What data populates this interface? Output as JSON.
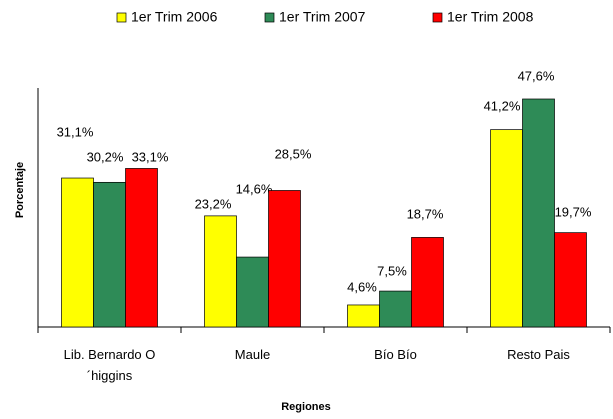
{
  "chart_data": {
    "type": "bar",
    "x_label": "Regiones",
    "y_label": "Porcentaje",
    "categories": [
      "Lib. Bernardo O´higgins",
      "Maule",
      "Bío Bío",
      "Resto Pais"
    ],
    "legend": "top",
    "series": [
      {
        "name": "1er Trim 2006",
        "color": "#ffff00",
        "values": [
          31.1,
          23.2,
          4.6,
          41.2
        ],
        "value_labels": [
          "31,1%",
          "23,2%",
          "4,6%",
          "41,2%"
        ]
      },
      {
        "name": "1er Trim 2007",
        "color": "#2e8b57",
        "values": [
          30.2,
          14.6,
          7.5,
          47.6
        ],
        "value_labels": [
          "30,2%",
          "14,6%",
          "7,5%",
          "47,6%"
        ]
      },
      {
        "name": "1er Trim 2008",
        "color": "#ff0000",
        "values": [
          33.1,
          28.5,
          18.7,
          19.7
        ],
        "value_labels": [
          "33,1%",
          "28,5%",
          "18,7%",
          "19,7%"
        ]
      }
    ]
  }
}
